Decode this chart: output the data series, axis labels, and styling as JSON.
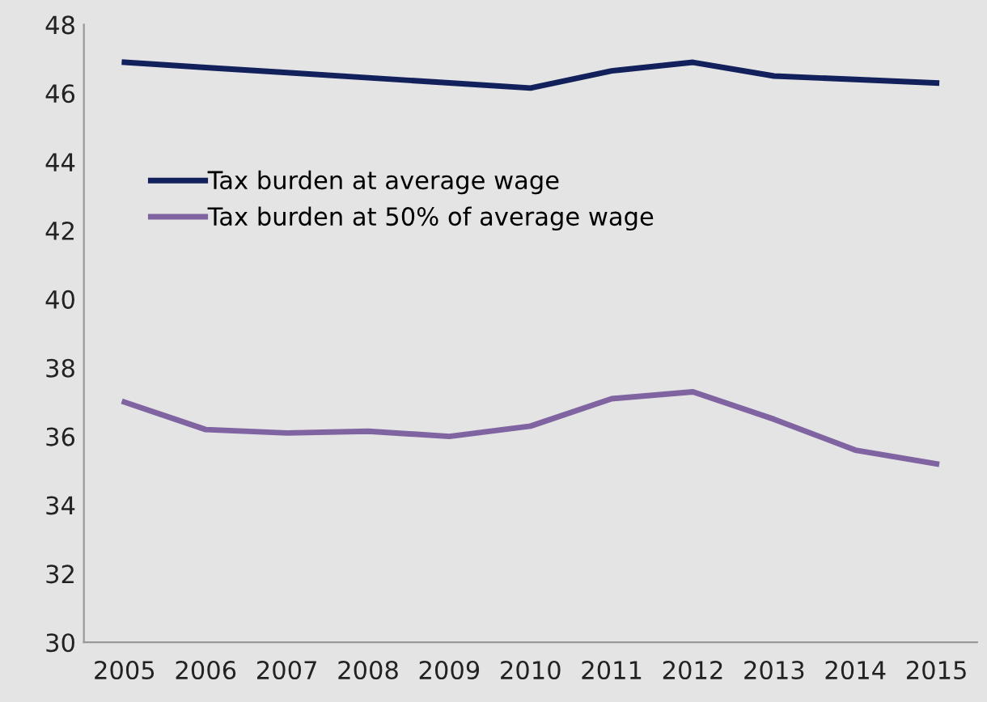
{
  "chart_data": {
    "type": "line",
    "categories": [
      "2005",
      "2006",
      "2007",
      "2008",
      "2009",
      "2010",
      "2011",
      "2012",
      "2013",
      "2014",
      "2015"
    ],
    "series": [
      {
        "name": "Tax burden at average wage",
        "color": "#12215c",
        "values": [
          46.9,
          46.75,
          46.6,
          46.45,
          46.3,
          46.15,
          46.65,
          46.9,
          46.5,
          46.4,
          46.3
        ]
      },
      {
        "name": "Tax burden at 50% of average wage",
        "color": "#8064a2",
        "values": [
          37.0,
          36.2,
          36.1,
          36.15,
          36.0,
          36.3,
          37.1,
          37.3,
          36.5,
          35.6,
          35.2
        ]
      }
    ],
    "ylim": [
      30,
      48
    ],
    "yticks": [
      30,
      32,
      34,
      36,
      38,
      40,
      42,
      44,
      46,
      48
    ],
    "grid": false,
    "legend": "top left",
    "marker": "none",
    "line_style": "solid"
  }
}
